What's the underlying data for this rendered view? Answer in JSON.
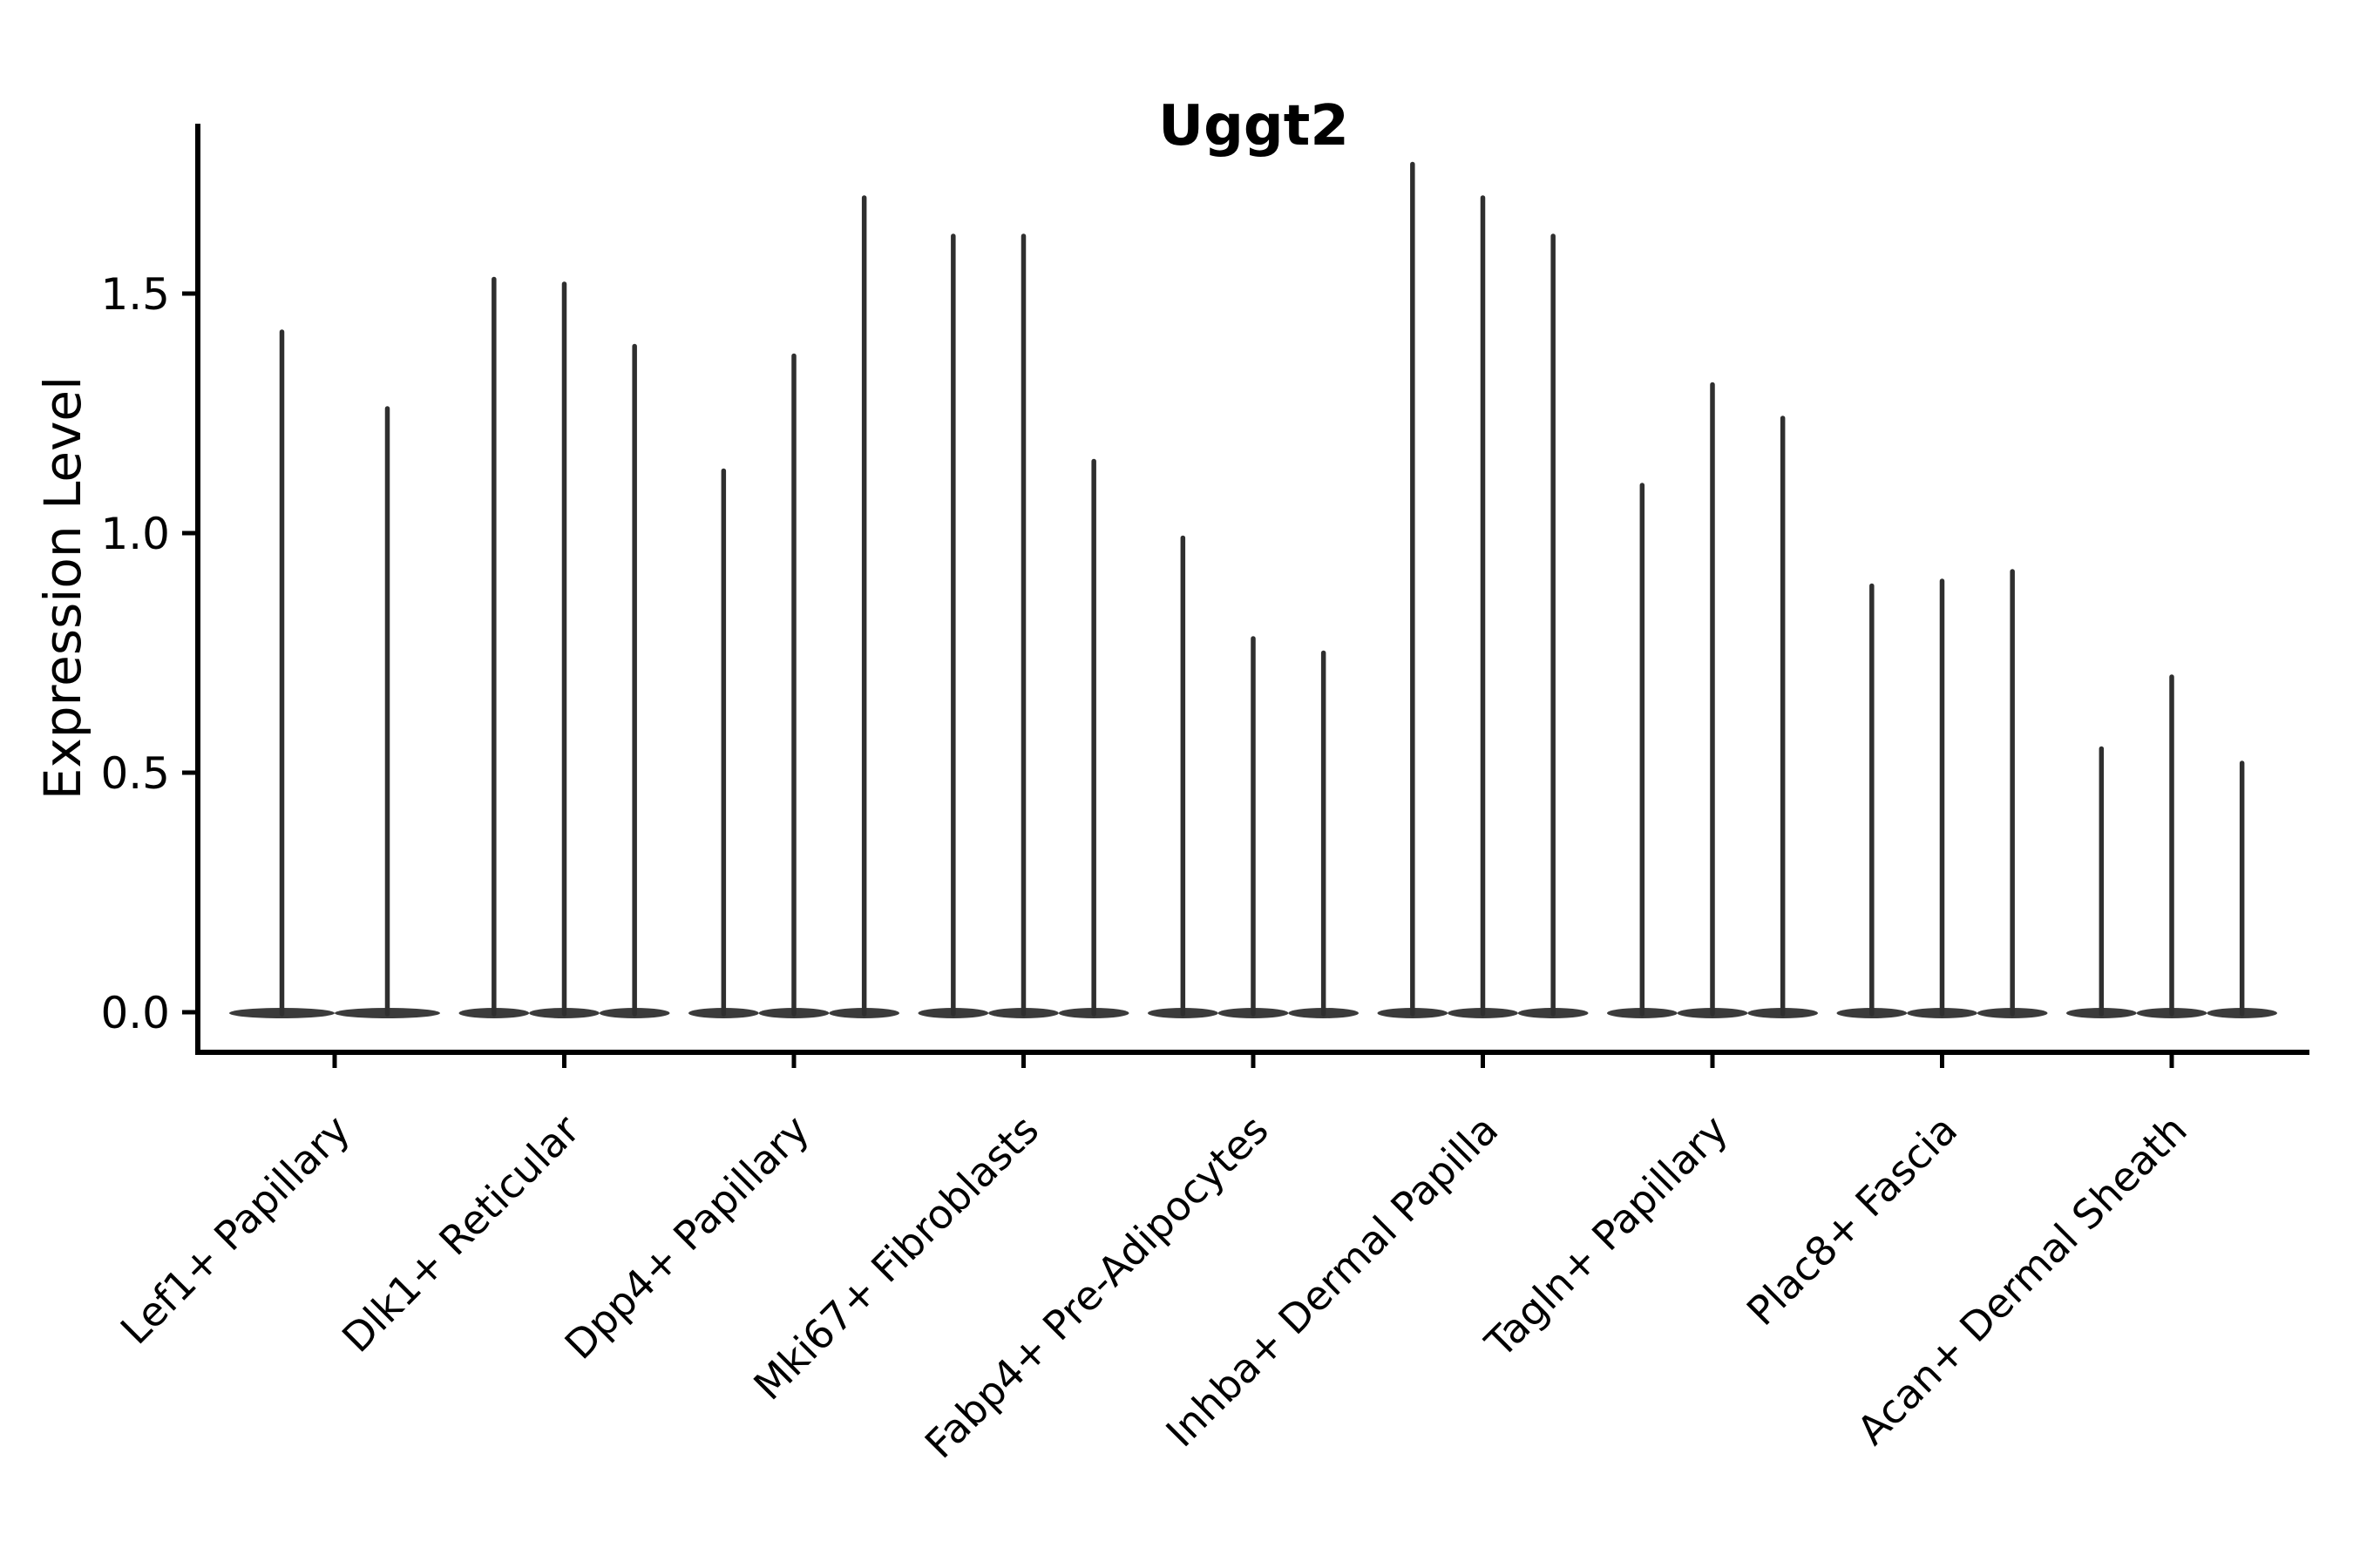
{
  "figure": {
    "title": "Uggt2",
    "ylabel": "Expression Level"
  },
  "chart_data": {
    "type": "violin",
    "title": "Uggt2",
    "xlabel": "",
    "ylabel": "Expression Level",
    "yticks": [
      0.0,
      0.5,
      1.0,
      1.5
    ],
    "ytick_labels": [
      "0.0",
      "0.5",
      "1.0",
      "1.5"
    ],
    "ylim": [
      -0.084,
      1.855
    ],
    "grid": false,
    "legend_position": "none",
    "style_note": "needle-thin violins: nearly all density sits at 0 forming a wide flat lens at the baseline, with a thin spike rising to each violin's maximum; first category has 2 violins, all others have 3; violins within a category fill ~92% of the category slot",
    "categories": [
      "Lef1+ Papillary",
      "Dlk1+ Reticular",
      "Dpp4+ Papillary",
      "Mki67+ Fibroblasts",
      "Fabp4+ Pre-Adipocytes",
      "Inhba+ Dermal Papilla",
      "Tagln+ Papillary",
      "Plac8+ Fascia",
      "Acan+ Dermal Sheath"
    ],
    "groups": [
      {
        "category": "Lef1+ Papillary",
        "violin_max": [
          1.42,
          1.26
        ]
      },
      {
        "category": "Dlk1+ Reticular",
        "violin_max": [
          1.53,
          1.52,
          1.39
        ]
      },
      {
        "category": "Dpp4+ Papillary",
        "violin_max": [
          1.13,
          1.37,
          1.7
        ]
      },
      {
        "category": "Mki67+ Fibroblasts",
        "violin_max": [
          1.62,
          1.62,
          1.15
        ]
      },
      {
        "category": "Fabp4+ Pre-Adipocytes",
        "violin_max": [
          0.99,
          0.78,
          0.75
        ]
      },
      {
        "category": "Inhba+ Dermal Papilla",
        "violin_max": [
          1.77,
          1.7,
          1.62
        ]
      },
      {
        "category": "Tagln+ Papillary",
        "violin_max": [
          1.1,
          1.31,
          1.24
        ]
      },
      {
        "category": "Plac8+ Fascia",
        "violin_max": [
          0.89,
          0.9,
          0.92
        ]
      },
      {
        "category": "Acan+ Dermal Sheath",
        "violin_max": [
          0.55,
          0.7,
          0.52
        ]
      }
    ],
    "colors": {
      "spike": "#2f2f2f",
      "base_lens": "#3b3b3b",
      "axis": "#000000",
      "text": "#000000",
      "background": "#ffffff"
    }
  }
}
